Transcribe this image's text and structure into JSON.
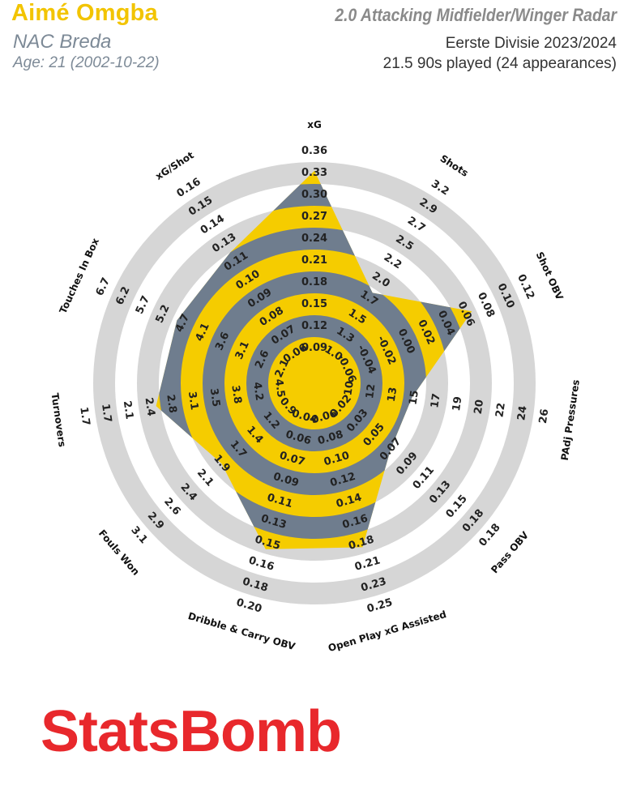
{
  "header": {
    "player_name": "Aimé Omgba",
    "team": "NAC Breda",
    "age": "Age: 21 (2002-10-22)",
    "radar_title": "2.0 Attacking Midfielder/Winger Radar",
    "competition": "Eerste Divisie 2023/2024",
    "minutes": "21.5 90s played (24 appearances)"
  },
  "colors": {
    "yellow": "#f5cc00",
    "slate": "#6f7d8e",
    "ring": "#d6d6d6",
    "brand_red": "#e8282c"
  },
  "chart_data": {
    "type": "radar",
    "metrics": [
      {
        "name": "xG",
        "ticks": [
          "0.09",
          "0.12",
          "0.15",
          "0.18",
          "0.21",
          "0.24",
          "0.27",
          "0.30",
          "0.33",
          "0.36"
        ],
        "value_fraction": 0.86
      },
      {
        "name": "Shots",
        "ticks": [
          "1.0",
          "1.3",
          "1.5",
          "1.7",
          "2.0",
          "2.2",
          "2.5",
          "2.7",
          "2.9",
          "3.2"
        ],
        "value_fraction": 0.38
      },
      {
        "name": "Shot OBV",
        "ticks": [
          "-0.06",
          "-0.04",
          "-0.02",
          "0.00",
          "0.02",
          "0.04",
          "0.06",
          "0.08",
          "0.10",
          "0.12"
        ],
        "value_fraction": 0.68
      },
      {
        "name": "PAdj Pressures",
        "ticks": [
          "10",
          "12",
          "13",
          "15",
          "17",
          "19",
          "20",
          "22",
          "24",
          "26"
        ],
        "value_fraction": 0.34
      },
      {
        "name": "Pass OBV",
        "ticks": [
          "0.02",
          "0.03",
          "0.05",
          "0.07",
          "0.09",
          "0.11",
          "0.13",
          "0.15",
          "0.18",
          "0.18"
        ],
        "value_fraction": 0.35
      },
      {
        "name": "Open Play xG Assisted",
        "ticks": [
          "0.06",
          "0.08",
          "0.10",
          "0.12",
          "0.14",
          "0.16",
          "0.18",
          "0.21",
          "0.23",
          "0.25"
        ],
        "value_fraction": 0.67
      },
      {
        "name": "Dribble & Carry OBV",
        "ticks": [
          "0.04",
          "0.06",
          "0.07",
          "0.09",
          "0.11",
          "0.13",
          "0.15",
          "0.16",
          "0.18",
          "0.20"
        ],
        "value_fraction": 0.68
      },
      {
        "name": "Fouls Won",
        "ticks": [
          "0.9",
          "1.2",
          "1.4",
          "1.7",
          "1.9",
          "2.1",
          "2.4",
          "2.6",
          "2.9",
          "3.1"
        ],
        "value_fraction": 0.45
      },
      {
        "name": "Turnovers",
        "ticks": [
          "4.5",
          "4.2",
          "3.8",
          "3.5",
          "3.1",
          "2.8",
          "2.4",
          "2.1",
          "1.7",
          "1.7"
        ],
        "value_fraction": 0.62
      },
      {
        "name": "Touches In Box",
        "ticks": [
          "2.1",
          "2.6",
          "3.1",
          "3.6",
          "4.1",
          "4.7",
          "5.2",
          "5.7",
          "6.2",
          "6.7"
        ],
        "value_fraction": 0.58
      },
      {
        "name": "xG/Shot",
        "ticks": [
          "0.06",
          "0.07",
          "0.08",
          "0.09",
          "0.10",
          "0.11",
          "0.13",
          "0.14",
          "0.15",
          "0.16"
        ],
        "value_fraction": 0.6
      }
    ]
  },
  "brand": {
    "logo_text": "StatsBomb"
  }
}
